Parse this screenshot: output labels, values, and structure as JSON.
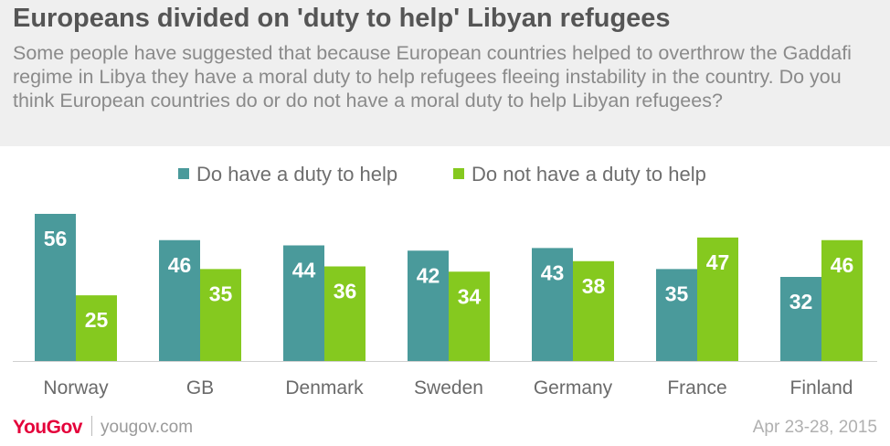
{
  "header": {
    "title": "Europeans divided on 'duty to help' Libyan refugees",
    "subtitle": "Some people have suggested that because European countries helped to overthrow the Gaddafi regime in Libya they have a moral duty to help refugees fleeing instability in the country. Do you think European countries do or do not have a moral duty to help Libyan refugees?"
  },
  "legend": {
    "items": [
      {
        "label": "Do have a duty to help",
        "color": "#4a9a9b"
      },
      {
        "label": "Do not have a duty to help",
        "color": "#85c91f"
      }
    ]
  },
  "chart_data": {
    "type": "bar",
    "categories": [
      "Norway",
      "GB",
      "Denmark",
      "Sweden",
      "Germany",
      "France",
      "Finland"
    ],
    "series": [
      {
        "name": "Do have a duty to help",
        "color": "#4a9a9b",
        "values": [
          56,
          46,
          44,
          42,
          43,
          35,
          32
        ]
      },
      {
        "name": "Do not have a duty to help",
        "color": "#85c91f",
        "values": [
          25,
          35,
          36,
          34,
          38,
          47,
          46
        ]
      }
    ],
    "title": "Europeans divided on 'duty to help' Libyan refugees",
    "xlabel": "",
    "ylabel": "",
    "ylim": [
      0,
      56
    ],
    "grid": false,
    "legend_position": "top"
  },
  "footer": {
    "brand": "YouGov",
    "url": "yougov.com",
    "date": "Apr 23-28, 2015"
  }
}
